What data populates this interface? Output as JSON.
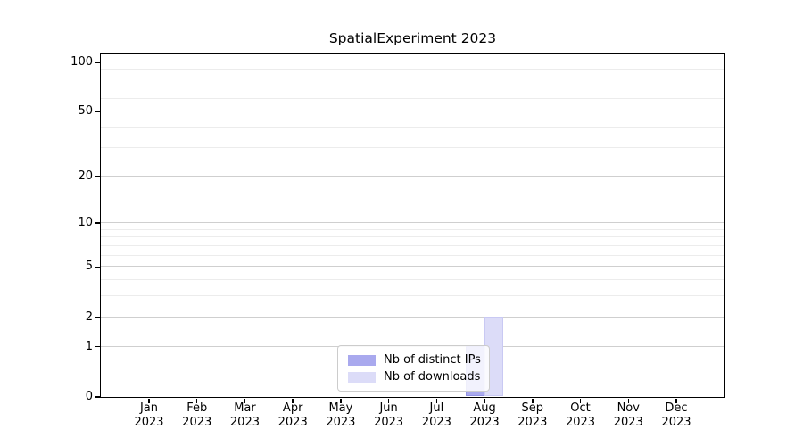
{
  "chart_data": {
    "type": "bar",
    "title": "SpatialExperiment 2023",
    "x_months": [
      "Jan",
      "Feb",
      "Mar",
      "Apr",
      "May",
      "Jun",
      "Jul",
      "Aug",
      "Sep",
      "Oct",
      "Nov",
      "Dec"
    ],
    "x_year": "2023",
    "series": [
      {
        "name": "Nb of distinct IPs",
        "values": [
          0,
          0,
          0,
          0,
          0,
          0,
          0,
          1,
          0,
          0,
          0,
          0
        ],
        "fill": "#a9a9ee",
        "border": "#9393e3"
      },
      {
        "name": "Nb of downloads",
        "values": [
          0,
          0,
          0,
          0,
          0,
          0,
          0,
          2,
          0,
          0,
          0,
          0
        ],
        "fill": "#dcdcf8",
        "border": "#c9c9f3"
      }
    ],
    "y_axis": {
      "scale": "log1p",
      "ticks": [
        0,
        1,
        2,
        5,
        10,
        20,
        50,
        100
      ],
      "minor_gridlines": [
        3,
        4,
        6,
        7,
        8,
        9,
        30,
        40,
        60,
        70,
        80,
        90
      ],
      "max": 113
    },
    "grid": {
      "on": true,
      "major_color": "#cfcfcf",
      "minor_color": "#ececec"
    },
    "spine_color": "#000000",
    "legend": {
      "position": "bottom-center",
      "items": [
        "Nb of distinct IPs",
        "Nb of downloads"
      ]
    }
  }
}
